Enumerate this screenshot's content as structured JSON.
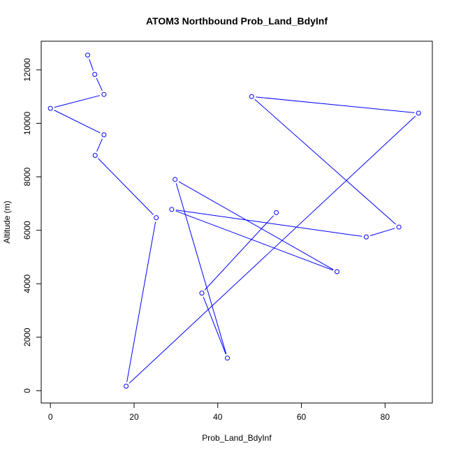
{
  "chart_data": {
    "type": "line",
    "title": "ATOM3 Northbound Prob_Land_BdyInf",
    "xlabel": "Prob_Land_BdyInf",
    "ylabel": "Altitude (m)",
    "xlim": [
      -2.2,
      91.3
    ],
    "ylim": [
      -460,
      13070
    ],
    "xticks": [
      "0",
      "20",
      "40",
      "60",
      "80"
    ],
    "yticks": [
      "0",
      "2000",
      "4000",
      "6000",
      "8000",
      "10000",
      "12000"
    ],
    "xtick_values": [
      0,
      20,
      40,
      60,
      80
    ],
    "ytick_values": [
      0,
      2000,
      4000,
      6000,
      8000,
      10000,
      12000
    ],
    "series": [
      {
        "color": "#0000ff",
        "points": [
          {
            "x": 8.9,
            "y": 12550
          },
          {
            "x": 10.6,
            "y": 11830
          },
          {
            "x": 12.8,
            "y": 11080
          },
          {
            "x": 0.0,
            "y": 10560
          },
          {
            "x": 12.8,
            "y": 9570
          },
          {
            "x": 10.7,
            "y": 8800
          },
          {
            "x": 25.3,
            "y": 6470
          },
          {
            "x": 18.1,
            "y": 170
          },
          {
            "x": 88.0,
            "y": 10380
          },
          {
            "x": 48.1,
            "y": 11000
          },
          {
            "x": 83.3,
            "y": 6120
          },
          {
            "x": 75.5,
            "y": 5750
          },
          {
            "x": 29.0,
            "y": 6780
          },
          {
            "x": 68.5,
            "y": 4450
          },
          {
            "x": 29.8,
            "y": 7900
          },
          {
            "x": 42.3,
            "y": 1220
          },
          {
            "x": 36.2,
            "y": 3650
          },
          {
            "x": 54.0,
            "y": 6660
          }
        ]
      }
    ],
    "grid": false,
    "legend": "none"
  }
}
